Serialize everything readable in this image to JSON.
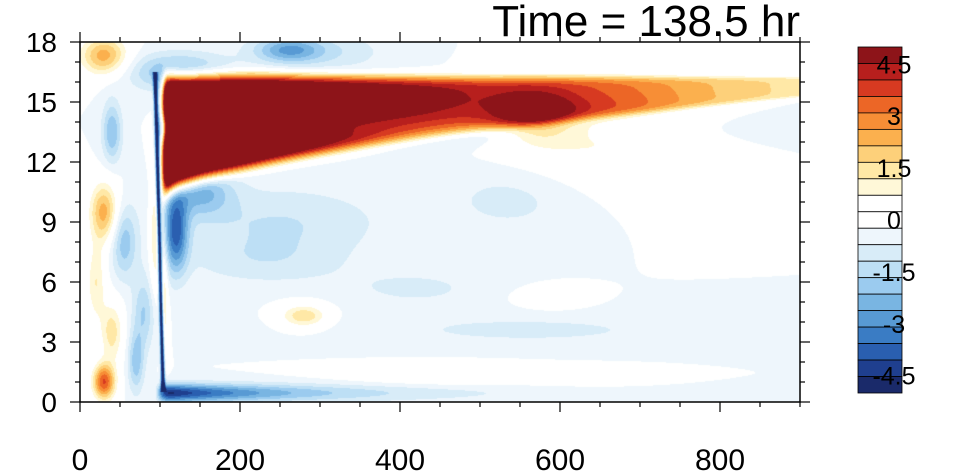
{
  "chart_data": {
    "type": "heatmap",
    "title": "Time = 138.5 hr",
    "xlabel": "",
    "ylabel": "",
    "xlim": [
      0,
      900
    ],
    "ylim": [
      0,
      18
    ],
    "x_ticks": [
      0,
      200,
      400,
      600,
      800
    ],
    "y_ticks": [
      0,
      3,
      6,
      9,
      12,
      15,
      18
    ],
    "colorbar": {
      "levels": [
        -5.0,
        -4.5,
        -4.0,
        -3.5,
        -3.0,
        -2.5,
        -2.0,
        -1.5,
        -1.0,
        -0.5,
        0.0,
        0.5,
        1.0,
        1.5,
        2.0,
        2.5,
        3.0,
        3.5,
        4.0,
        4.5,
        5.0
      ],
      "labels": [
        "4.5",
        "3",
        "1.5",
        "0",
        "-1.5",
        "-3",
        "-4.5"
      ],
      "label_values": [
        4.5,
        3.0,
        1.5,
        0.0,
        -1.5,
        -3.0,
        -4.5
      ],
      "colors": [
        "#1a2a6a",
        "#1f3f8f",
        "#2a5fb0",
        "#3a7cc4",
        "#589ad4",
        "#79b5e2",
        "#9bcbef",
        "#bddff5",
        "#d8ecf8",
        "#eef6fc",
        "#ffffff",
        "#ffffff",
        "#fff8d8",
        "#ffe8a6",
        "#fdd07a",
        "#fbb04e",
        "#f78e36",
        "#ec6626",
        "#d73a21",
        "#b71f1d",
        "#8d1419"
      ]
    },
    "features": [
      {
        "kind": "blob",
        "x": 122,
        "y": 16.5,
        "rx": 60,
        "ry": 0.9,
        "value": -2.2
      },
      {
        "kind": "blob",
        "x": 30,
        "y": 17.3,
        "rx": 30,
        "ry": 1.0,
        "value": 2.8
      },
      {
        "kind": "blob",
        "x": 300,
        "y": 17.5,
        "rx": 80,
        "ry": 1.0,
        "value": -1.0
      },
      {
        "kind": "blob",
        "x": 260,
        "y": 17.6,
        "rx": 40,
        "ry": 0.6,
        "value": -2.0
      },
      {
        "kind": "blob",
        "x": 40,
        "y": 13.5,
        "rx": 12,
        "ry": 1.5,
        "value": -2.0
      },
      {
        "kind": "blob",
        "x": 30,
        "y": 9.5,
        "rx": 18,
        "ry": 1.5,
        "value": 2.8
      },
      {
        "kind": "blob",
        "x": 55,
        "y": 8.0,
        "rx": 16,
        "ry": 1.8,
        "value": -1.8
      },
      {
        "kind": "blob",
        "x": 20,
        "y": 6.0,
        "rx": 12,
        "ry": 2.0,
        "value": 1.5
      },
      {
        "kind": "blob",
        "x": 80,
        "y": 4.5,
        "rx": 14,
        "ry": 1.8,
        "value": -1.5
      },
      {
        "kind": "blob",
        "x": 40,
        "y": 3.5,
        "rx": 14,
        "ry": 1.5,
        "value": 1.8
      },
      {
        "kind": "blob",
        "x": 95,
        "y": 8.5,
        "rx": 8,
        "ry": 3.0,
        "value": 2.0
      },
      {
        "kind": "blob",
        "x": 30,
        "y": 1.0,
        "rx": 14,
        "ry": 0.9,
        "value": 4.0
      },
      {
        "kind": "blob",
        "x": 70,
        "y": 2.0,
        "rx": 10,
        "ry": 1.5,
        "value": -1.8
      },
      {
        "kind": "blob",
        "x": 105,
        "y": 5.0,
        "rx": 5,
        "ry": 3.0,
        "value": 1.5
      },
      {
        "kind": "blob",
        "x": 150,
        "y": 10.5,
        "rx": 40,
        "ry": 1.2,
        "value": -2.0
      },
      {
        "kind": "blob",
        "x": 120,
        "y": 8.5,
        "rx": 15,
        "ry": 2.0,
        "value": -3.5
      },
      {
        "kind": "blob",
        "x": 250,
        "y": 9.0,
        "rx": 130,
        "ry": 1.8,
        "value": -1.0
      },
      {
        "kind": "blob",
        "x": 230,
        "y": 7.0,
        "rx": 100,
        "ry": 1.2,
        "value": -0.7
      },
      {
        "kind": "blob",
        "x": 280,
        "y": 4.3,
        "rx": 30,
        "ry": 0.6,
        "value": 2.0
      },
      {
        "kind": "blob",
        "x": 560,
        "y": 3.6,
        "rx": 240,
        "ry": 0.9,
        "value": -0.6
      },
      {
        "kind": "blob",
        "x": 420,
        "y": 5.7,
        "rx": 100,
        "ry": 1.0,
        "value": -0.6
      },
      {
        "kind": "blob",
        "x": 540,
        "y": 10.2,
        "rx": 90,
        "ry": 1.8,
        "value": -0.7
      },
      {
        "kind": "blob",
        "x": 590,
        "y": 5.2,
        "rx": 40,
        "ry": 0.5,
        "value": 1.0
      },
      {
        "kind": "blob",
        "x": 650,
        "y": 13.6,
        "rx": 120,
        "ry": 2.6,
        "value": 1.2
      },
      {
        "kind": "blob",
        "x": 570,
        "y": 14.2,
        "rx": 50,
        "ry": 1.2,
        "value": 2.2
      },
      {
        "kind": "blob",
        "x": 460,
        "y": 1.4,
        "rx": 120,
        "ry": 0.5,
        "value": 0.9
      },
      {
        "kind": "blob",
        "x": 640,
        "y": 1.3,
        "rx": 80,
        "ry": 0.4,
        "value": 0.8
      },
      {
        "kind": "band",
        "x0": 102,
        "x1": 900,
        "yc": 13.7,
        "half": 0.8,
        "value": -5.0,
        "decay": 230
      },
      {
        "kind": "band",
        "x0": 100,
        "x1": 900,
        "yc": 0.45,
        "half": 0.45,
        "value": -5.0,
        "decay": 180
      },
      {
        "kind": "jet",
        "x0": 105,
        "x1": 900,
        "ytop": 16.3,
        "ybot0": 10.3,
        "ybot1": 15.2,
        "value": 12.0,
        "decay": 420
      },
      {
        "kind": "wall",
        "x": 104,
        "y0": 0.5,
        "y1": 16.5,
        "tilt": -10,
        "width": 2.5,
        "value": -6.0
      }
    ]
  }
}
